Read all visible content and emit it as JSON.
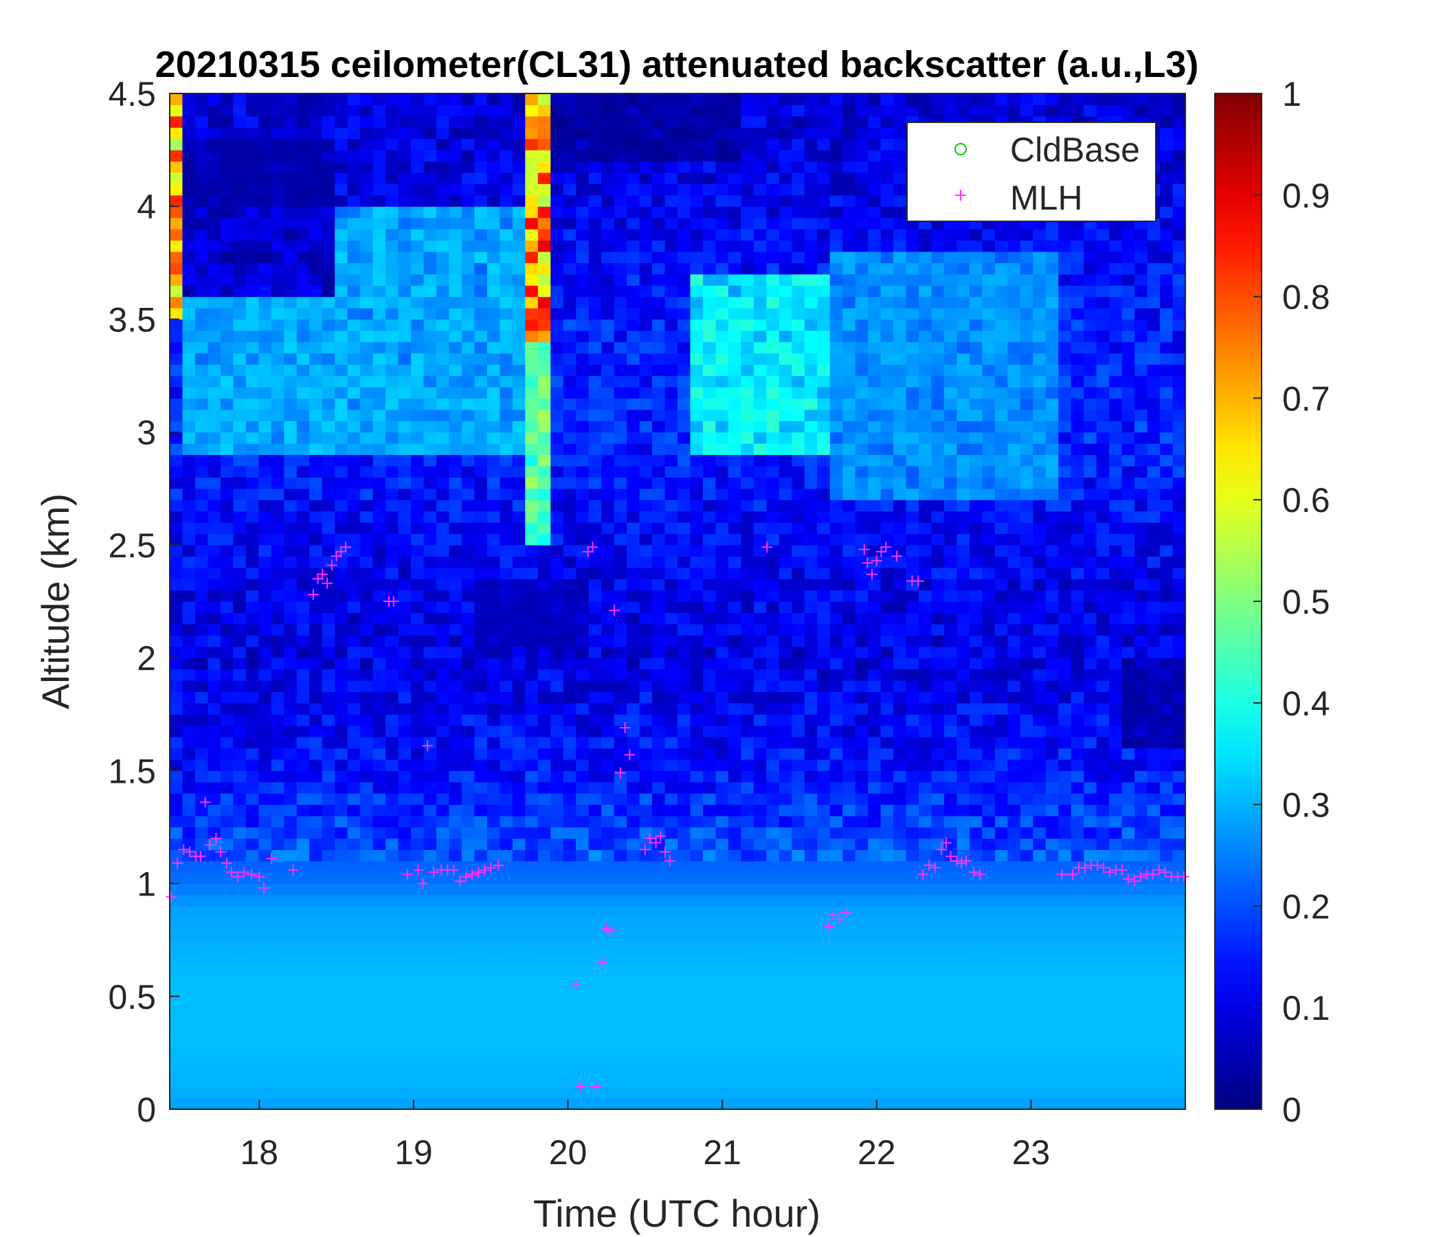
{
  "chart_data": {
    "type": "heatmap",
    "title": "20210315 ceilometer(CL31) attenuated backscatter (a.u.,L3)",
    "xlabel": "Time (UTC hour)",
    "ylabel": "Altitude (km)",
    "xlim": [
      17.42,
      24.0
    ],
    "ylim": [
      0,
      4.5
    ],
    "x_ticks": [
      "18",
      "19",
      "20",
      "21",
      "22",
      "23"
    ],
    "y_ticks": [
      "0",
      "0.5",
      "1",
      "1.5",
      "2",
      "2.5",
      "3",
      "3.5",
      "4",
      "4.5"
    ],
    "colorbar": {
      "colormap": "jet",
      "range": [
        0,
        1
      ],
      "ticks": [
        "0",
        "0.1",
        "0.2",
        "0.3",
        "0.4",
        "0.5",
        "0.6",
        "0.7",
        "0.8",
        "0.9",
        "1"
      ]
    },
    "legend": {
      "placement": "top-right",
      "entries": [
        {
          "name": "CldBase",
          "marker": "o",
          "color": "#00cc00"
        },
        {
          "name": "MLH",
          "marker": "+",
          "color": "#ff33ff"
        }
      ]
    },
    "background_profile": [
      [
        0.0,
        0.28
      ],
      [
        0.1,
        0.3
      ],
      [
        0.3,
        0.31
      ],
      [
        0.6,
        0.31
      ],
      [
        0.9,
        0.28
      ],
      [
        1.0,
        0.24
      ],
      [
        1.2,
        0.19
      ],
      [
        1.5,
        0.14
      ],
      [
        2.0,
        0.1
      ],
      [
        2.5,
        0.12
      ],
      [
        3.0,
        0.16
      ],
      [
        3.5,
        0.15
      ],
      [
        4.0,
        0.11
      ],
      [
        4.5,
        0.09
      ]
    ],
    "features": [
      {
        "x0": 17.42,
        "x1": 17.52,
        "y0": 3.5,
        "y1": 4.5,
        "value": 0.85
      },
      {
        "x0": 19.75,
        "x1": 19.92,
        "y0": 3.4,
        "y1": 4.5,
        "value": 0.9
      },
      {
        "x0": 19.75,
        "x1": 19.9,
        "y0": 2.5,
        "y1": 3.4,
        "value": 0.55
      },
      {
        "x0": 17.5,
        "x1": 19.7,
        "y0": 2.9,
        "y1": 4.0,
        "value": 0.33
      },
      {
        "x0": 20.8,
        "x1": 21.7,
        "y0": 2.9,
        "y1": 3.7,
        "value": 0.42
      },
      {
        "x0": 21.7,
        "x1": 23.2,
        "y0": 2.7,
        "y1": 3.8,
        "value": 0.3
      },
      {
        "x0": 17.5,
        "x1": 18.5,
        "y0": 3.6,
        "y1": 4.3,
        "value": 0.03
      },
      {
        "x0": 19.9,
        "x1": 21.1,
        "y0": 4.2,
        "y1": 4.5,
        "value": 0.02
      },
      {
        "x0": 23.6,
        "x1": 24.0,
        "y0": 1.6,
        "y1": 2.0,
        "value": 0.03
      },
      {
        "x0": 19.4,
        "x1": 20.1,
        "y0": 2.05,
        "y1": 2.35,
        "value": 0.05
      }
    ],
    "series": [
      {
        "name": "MLH",
        "marker": "+",
        "points": [
          [
            17.43,
            0.94
          ],
          [
            17.47,
            1.09
          ],
          [
            17.51,
            1.15
          ],
          [
            17.55,
            1.14
          ],
          [
            17.59,
            1.12
          ],
          [
            17.62,
            1.12
          ],
          [
            17.65,
            1.36
          ],
          [
            17.68,
            1.17
          ],
          [
            17.72,
            1.2
          ],
          [
            17.75,
            1.14
          ],
          [
            17.79,
            1.09
          ],
          [
            17.82,
            1.05
          ],
          [
            17.86,
            1.03
          ],
          [
            17.9,
            1.05
          ],
          [
            17.95,
            1.04
          ],
          [
            18.0,
            1.03
          ],
          [
            18.03,
            0.98
          ],
          [
            18.08,
            1.11
          ],
          [
            18.22,
            1.06
          ],
          [
            18.35,
            2.28
          ],
          [
            18.38,
            2.35
          ],
          [
            18.41,
            2.37
          ],
          [
            18.44,
            2.33
          ],
          [
            18.47,
            2.41
          ],
          [
            18.5,
            2.45
          ],
          [
            18.53,
            2.47
          ],
          [
            18.56,
            2.49
          ],
          [
            18.84,
            2.25
          ],
          [
            18.87,
            2.25
          ],
          [
            18.96,
            1.04
          ],
          [
            19.03,
            1.06
          ],
          [
            19.06,
            1.0
          ],
          [
            19.09,
            1.61
          ],
          [
            19.13,
            1.05
          ],
          [
            19.18,
            1.06
          ],
          [
            19.22,
            1.06
          ],
          [
            19.26,
            1.06
          ],
          [
            19.3,
            1.01
          ],
          [
            19.34,
            1.03
          ],
          [
            19.38,
            1.04
          ],
          [
            19.42,
            1.05
          ],
          [
            19.46,
            1.06
          ],
          [
            19.5,
            1.07
          ],
          [
            19.55,
            1.08
          ],
          [
            20.05,
            0.55
          ],
          [
            20.08,
            0.1
          ],
          [
            20.13,
            2.47
          ],
          [
            20.16,
            2.49
          ],
          [
            20.18,
            0.1
          ],
          [
            20.22,
            0.65
          ],
          [
            20.25,
            0.8
          ],
          [
            20.28,
            0.79
          ],
          [
            20.3,
            2.21
          ],
          [
            20.34,
            1.49
          ],
          [
            20.37,
            1.69
          ],
          [
            20.4,
            1.57
          ],
          [
            20.5,
            1.15
          ],
          [
            20.53,
            1.2
          ],
          [
            20.57,
            1.18
          ],
          [
            20.6,
            1.21
          ],
          [
            20.63,
            1.14
          ],
          [
            20.66,
            1.1
          ],
          [
            21.29,
            2.49
          ],
          [
            21.69,
            0.81
          ],
          [
            21.72,
            0.86
          ],
          [
            21.76,
            0.84
          ],
          [
            21.8,
            0.87
          ],
          [
            21.92,
            2.48
          ],
          [
            21.94,
            2.42
          ],
          [
            21.97,
            2.37
          ],
          [
            22.0,
            2.43
          ],
          [
            22.03,
            2.47
          ],
          [
            22.06,
            2.49
          ],
          [
            22.13,
            2.45
          ],
          [
            22.23,
            2.34
          ],
          [
            22.27,
            2.34
          ],
          [
            22.3,
            1.04
          ],
          [
            22.34,
            1.08
          ],
          [
            22.38,
            1.07
          ],
          [
            22.42,
            1.15
          ],
          [
            22.45,
            1.18
          ],
          [
            22.48,
            1.12
          ],
          [
            22.52,
            1.1
          ],
          [
            22.55,
            1.09
          ],
          [
            22.58,
            1.1
          ],
          [
            22.63,
            1.05
          ],
          [
            22.67,
            1.04
          ],
          [
            23.2,
            1.04
          ],
          [
            23.27,
            1.04
          ],
          [
            23.31,
            1.07
          ],
          [
            23.35,
            1.07
          ],
          [
            23.39,
            1.08
          ],
          [
            23.43,
            1.08
          ],
          [
            23.47,
            1.07
          ],
          [
            23.51,
            1.05
          ],
          [
            23.55,
            1.06
          ],
          [
            23.59,
            1.06
          ],
          [
            23.63,
            1.02
          ],
          [
            23.67,
            1.01
          ],
          [
            23.71,
            1.03
          ],
          [
            23.75,
            1.04
          ],
          [
            23.79,
            1.04
          ],
          [
            23.83,
            1.06
          ],
          [
            23.87,
            1.05
          ],
          [
            23.91,
            1.03
          ],
          [
            23.95,
            1.03
          ],
          [
            23.99,
            1.03
          ]
        ]
      },
      {
        "name": "CldBase",
        "marker": "o",
        "points": []
      }
    ]
  }
}
